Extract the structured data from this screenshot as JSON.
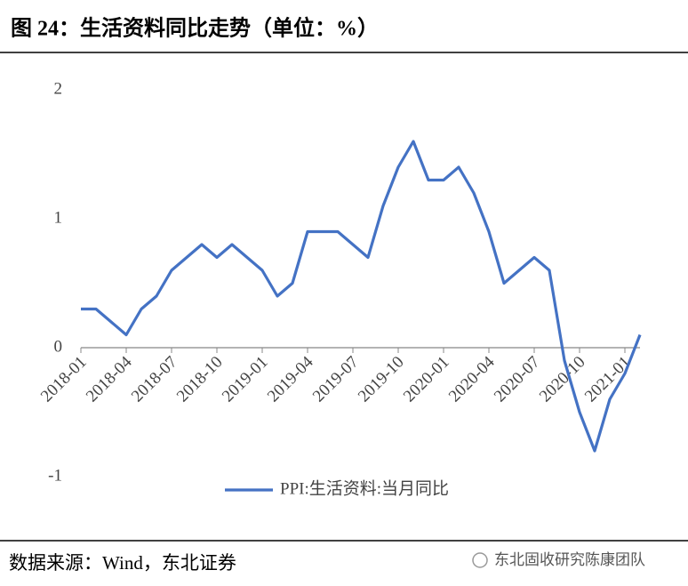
{
  "chart_data": {
    "type": "line",
    "title": "图 24：生活资料同比走势（单位：%）",
    "categories": [
      "2018-01",
      null,
      null,
      "2018-04",
      null,
      null,
      "2018-07",
      null,
      null,
      "2018-10",
      null,
      null,
      "2019-01",
      null,
      null,
      "2019-04",
      null,
      null,
      "2019-07",
      null,
      null,
      "2019-10",
      null,
      null,
      "2020-01",
      null,
      null,
      "2020-04",
      null,
      null,
      "2020-07",
      null,
      null,
      "2020-10",
      null,
      null,
      "2021-01",
      null
    ],
    "series": [
      {
        "name": "PPI:生活资料:当月同比",
        "color": "#4472c4",
        "values": [
          0.3,
          0.3,
          0.2,
          0.1,
          0.3,
          0.4,
          0.6,
          0.7,
          0.8,
          0.7,
          0.8,
          0.7,
          0.6,
          0.4,
          0.5,
          0.9,
          0.9,
          0.9,
          0.8,
          0.7,
          1.1,
          1.4,
          1.6,
          1.3,
          1.3,
          1.4,
          1.2,
          0.9,
          0.5,
          0.6,
          0.7,
          0.6,
          -0.1,
          -0.5,
          -0.8,
          -0.4,
          -0.2,
          0.1
        ]
      }
    ],
    "ylim": [
      -1,
      2
    ],
    "yticks": [
      -1,
      0,
      1,
      2
    ],
    "grid": false,
    "legend": "bottom"
  },
  "footer": {
    "source": "数据来源：Wind，东北证券",
    "watermark": "东北固收研究陈康团队"
  }
}
